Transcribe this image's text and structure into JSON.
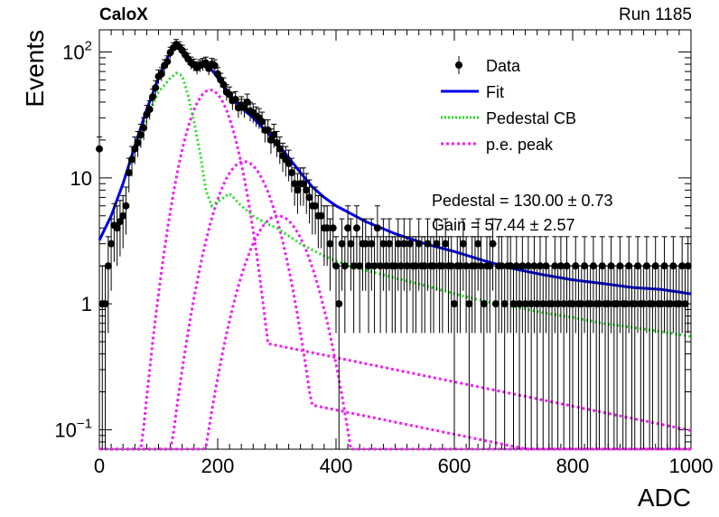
{
  "header": {
    "experiment": "CaloX",
    "run": "Run 1185"
  },
  "chart_data": {
    "type": "scatter",
    "xlabel": "ADC",
    "ylabel": "Events",
    "xlim": [
      0,
      1000
    ],
    "ylim": [
      0.07,
      150
    ],
    "yscale": "log",
    "x_ticks": [
      "0",
      "200",
      "400",
      "600",
      "800",
      "1000"
    ],
    "y_tick_labels": [
      {
        "value": 0.1,
        "base": "10",
        "exp": "−1"
      },
      {
        "value": 1,
        "base": "1",
        "exp": ""
      },
      {
        "value": 10,
        "base": "10",
        "exp": ""
      },
      {
        "value": 100,
        "base": "10",
        "exp": "2"
      }
    ],
    "legend": {
      "position": "top-right",
      "entries": [
        {
          "key": "data",
          "label": "Data",
          "color": "#000000"
        },
        {
          "key": "fit",
          "label": "Fit",
          "color": "#0000ee"
        },
        {
          "key": "ped",
          "label": "Pedestal CB",
          "color": "#22dd22"
        },
        {
          "key": "pe",
          "label": "p.e. peak",
          "color": "#ee22ee"
        }
      ]
    },
    "stats": {
      "line1": "Pedestal = 130.00 ± 0.73",
      "line2": "Gain = 57.44 ± 2.57"
    },
    "pedestal": 130.0,
    "gain": 57.44,
    "data_points": [
      [
        0,
        17
      ],
      [
        5,
        1
      ],
      [
        10,
        1
      ],
      [
        15,
        2
      ],
      [
        20,
        3
      ],
      [
        25,
        4.2
      ],
      [
        30,
        4
      ],
      [
        35,
        4.5
      ],
      [
        40,
        5
      ],
      [
        45,
        6
      ],
      [
        50,
        11
      ],
      [
        55,
        14
      ],
      [
        60,
        17
      ],
      [
        65,
        19
      ],
      [
        70,
        22
      ],
      [
        75,
        25
      ],
      [
        80,
        32
      ],
      [
        85,
        35
      ],
      [
        90,
        44
      ],
      [
        95,
        52
      ],
      [
        100,
        64
      ],
      [
        105,
        67
      ],
      [
        110,
        78
      ],
      [
        115,
        84
      ],
      [
        120,
        99
      ],
      [
        125,
        108
      ],
      [
        130,
        115
      ],
      [
        135,
        110
      ],
      [
        140,
        103
      ],
      [
        145,
        95
      ],
      [
        150,
        88
      ],
      [
        155,
        82
      ],
      [
        160,
        79
      ],
      [
        165,
        75
      ],
      [
        170,
        78
      ],
      [
        175,
        80
      ],
      [
        180,
        82
      ],
      [
        185,
        74
      ],
      [
        190,
        80
      ],
      [
        195,
        78
      ],
      [
        200,
        67
      ],
      [
        205,
        60
      ],
      [
        210,
        55
      ],
      [
        215,
        48
      ],
      [
        220,
        46
      ],
      [
        225,
        41
      ],
      [
        230,
        42
      ],
      [
        235,
        36
      ],
      [
        240,
        38
      ],
      [
        245,
        36
      ],
      [
        250,
        40
      ],
      [
        255,
        34
      ],
      [
        260,
        33
      ],
      [
        265,
        31
      ],
      [
        270,
        30
      ],
      [
        275,
        28
      ],
      [
        280,
        24
      ],
      [
        285,
        24
      ],
      [
        290,
        20
      ],
      [
        295,
        22
      ],
      [
        300,
        19
      ],
      [
        305,
        17
      ],
      [
        310,
        15
      ],
      [
        315,
        14
      ],
      [
        320,
        13
      ],
      [
        325,
        11
      ],
      [
        330,
        9
      ],
      [
        335,
        8
      ],
      [
        340,
        9
      ],
      [
        345,
        9
      ],
      [
        350,
        8
      ],
      [
        355,
        7
      ],
      [
        360,
        6
      ],
      [
        365,
        6
      ],
      [
        370,
        5
      ],
      [
        375,
        5
      ],
      [
        380,
        4
      ],
      [
        385,
        4
      ],
      [
        390,
        3
      ],
      [
        395,
        4
      ],
      [
        400,
        2
      ],
      [
        405,
        1
      ],
      [
        410,
        3
      ],
      [
        415,
        2
      ],
      [
        420,
        4
      ],
      [
        425,
        3
      ],
      [
        430,
        2
      ],
      [
        435,
        4
      ],
      [
        440,
        2
      ],
      [
        445,
        3
      ],
      [
        450,
        3
      ],
      [
        455,
        2
      ],
      [
        460,
        3
      ],
      [
        465,
        2
      ],
      [
        470,
        4
      ],
      [
        475,
        2
      ],
      [
        480,
        3
      ],
      [
        485,
        2
      ],
      [
        490,
        3
      ],
      [
        495,
        2
      ],
      [
        500,
        2
      ],
      [
        505,
        3
      ],
      [
        510,
        2
      ],
      [
        515,
        3
      ],
      [
        520,
        2
      ],
      [
        525,
        3
      ],
      [
        530,
        2
      ],
      [
        535,
        2
      ],
      [
        540,
        3
      ],
      [
        545,
        2
      ],
      [
        550,
        2
      ],
      [
        555,
        3
      ],
      [
        560,
        2
      ],
      [
        565,
        2
      ],
      [
        570,
        3
      ],
      [
        575,
        2
      ],
      [
        580,
        2
      ],
      [
        585,
        3
      ],
      [
        590,
        2
      ],
      [
        595,
        2
      ],
      [
        600,
        1
      ],
      [
        605,
        2
      ],
      [
        610,
        2
      ],
      [
        615,
        3
      ],
      [
        620,
        2
      ],
      [
        625,
        1
      ],
      [
        630,
        2
      ],
      [
        635,
        2
      ],
      [
        640,
        3
      ],
      [
        645,
        2
      ],
      [
        650,
        1
      ],
      [
        655,
        2
      ],
      [
        660,
        2
      ],
      [
        665,
        3
      ],
      [
        670,
        1
      ],
      [
        675,
        2
      ],
      [
        680,
        2
      ],
      [
        685,
        1
      ],
      [
        690,
        2
      ],
      [
        695,
        2
      ],
      [
        700,
        1
      ],
      [
        705,
        2
      ],
      [
        710,
        1
      ],
      [
        715,
        2
      ],
      [
        720,
        1
      ],
      [
        725,
        2
      ],
      [
        730,
        1
      ],
      [
        735,
        2
      ],
      [
        740,
        1
      ],
      [
        745,
        2
      ],
      [
        750,
        1
      ],
      [
        755,
        2
      ],
      [
        760,
        1
      ],
      [
        765,
        1
      ],
      [
        770,
        2
      ],
      [
        775,
        1
      ],
      [
        780,
        2
      ],
      [
        785,
        1
      ],
      [
        790,
        2
      ],
      [
        795,
        1
      ],
      [
        800,
        1
      ],
      [
        805,
        2
      ],
      [
        810,
        1
      ],
      [
        815,
        1
      ],
      [
        820,
        2
      ],
      [
        825,
        1
      ],
      [
        830,
        1
      ],
      [
        835,
        2
      ],
      [
        840,
        1
      ],
      [
        845,
        1
      ],
      [
        850,
        2
      ],
      [
        855,
        1
      ],
      [
        860,
        1
      ],
      [
        865,
        2
      ],
      [
        870,
        1
      ],
      [
        875,
        1
      ],
      [
        880,
        2
      ],
      [
        885,
        1
      ],
      [
        890,
        1
      ],
      [
        895,
        2
      ],
      [
        900,
        1
      ],
      [
        905,
        1
      ],
      [
        910,
        2
      ],
      [
        915,
        1
      ],
      [
        920,
        1
      ],
      [
        925,
        2
      ],
      [
        930,
        1
      ],
      [
        935,
        1
      ],
      [
        940,
        2
      ],
      [
        945,
        1
      ],
      [
        950,
        1
      ],
      [
        955,
        2
      ],
      [
        960,
        1
      ],
      [
        965,
        1
      ],
      [
        970,
        2
      ],
      [
        975,
        1
      ],
      [
        980,
        1
      ],
      [
        985,
        2
      ],
      [
        990,
        1
      ],
      [
        995,
        2
      ]
    ],
    "fit_curve": [
      [
        0,
        3.2
      ],
      [
        20,
        5
      ],
      [
        40,
        9
      ],
      [
        60,
        18
      ],
      [
        80,
        35
      ],
      [
        100,
        62
      ],
      [
        115,
        90
      ],
      [
        130,
        115
      ],
      [
        145,
        95
      ],
      [
        160,
        80
      ],
      [
        175,
        78
      ],
      [
        190,
        72
      ],
      [
        205,
        58
      ],
      [
        220,
        45
      ],
      [
        240,
        36
      ],
      [
        260,
        30
      ],
      [
        280,
        24
      ],
      [
        300,
        19
      ],
      [
        320,
        14.5
      ],
      [
        340,
        11
      ],
      [
        360,
        8.5
      ],
      [
        380,
        7
      ],
      [
        400,
        6
      ],
      [
        450,
        4.5
      ],
      [
        500,
        3.6
      ],
      [
        550,
        3.0
      ],
      [
        600,
        2.6
      ],
      [
        650,
        2.2
      ],
      [
        700,
        1.9
      ],
      [
        750,
        1.7
      ],
      [
        800,
        1.55
      ],
      [
        850,
        1.45
      ],
      [
        900,
        1.35
      ],
      [
        950,
        1.3
      ],
      [
        1000,
        1.2
      ]
    ],
    "pedestal_curve": [
      [
        0,
        3.2
      ],
      [
        20,
        5
      ],
      [
        40,
        9
      ],
      [
        60,
        17
      ],
      [
        80,
        30
      ],
      [
        100,
        48
      ],
      [
        120,
        62
      ],
      [
        130,
        68
      ],
      [
        140,
        65
      ],
      [
        150,
        45
      ],
      [
        160,
        28
      ],
      [
        170,
        16
      ],
      [
        180,
        8
      ],
      [
        190,
        6
      ],
      [
        220,
        7.5
      ],
      [
        240,
        6
      ],
      [
        260,
        5
      ],
      [
        280,
        4.4
      ],
      [
        300,
        4
      ],
      [
        340,
        3
      ],
      [
        380,
        2.4
      ],
      [
        420,
        2
      ],
      [
        460,
        1.8
      ],
      [
        500,
        1.6
      ],
      [
        550,
        1.4
      ],
      [
        600,
        1.2
      ],
      [
        650,
        1.05
      ],
      [
        700,
        0.95
      ],
      [
        750,
        0.85
      ],
      [
        800,
        0.78
      ],
      [
        850,
        0.7
      ],
      [
        900,
        0.65
      ],
      [
        950,
        0.6
      ],
      [
        1000,
        0.55
      ]
    ],
    "pe_peaks": [
      {
        "mu": 187.4,
        "amp": 50,
        "sigma": 32,
        "tail": 0.012
      },
      {
        "mu": 244.9,
        "amp": 13.5,
        "sigma": 38,
        "tail": 0.015
      },
      {
        "mu": 302.3,
        "amp": 5.0,
        "sigma": 42,
        "tail": 0.018
      }
    ]
  }
}
